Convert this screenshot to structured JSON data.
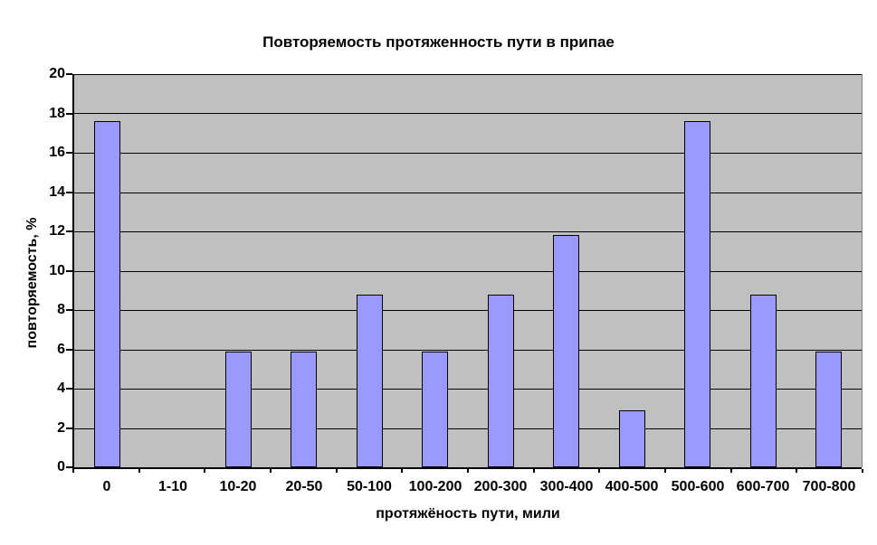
{
  "chart_data": {
    "type": "bar",
    "title": "Повторяемость протяженность пути в припае",
    "xlabel": "протяжёность пути, мили",
    "ylabel": "повторяемость, %",
    "categories": [
      "0",
      "1-10",
      "10-20",
      "20-50",
      "50-100",
      "100-200",
      "200-300",
      "300-400",
      "400-500",
      "500-600",
      "600-700",
      "700-800"
    ],
    "values": [
      17.6,
      0,
      5.9,
      5.9,
      8.8,
      5.9,
      8.8,
      11.8,
      2.9,
      17.6,
      8.8,
      5.9
    ],
    "ylim": [
      0,
      20
    ],
    "yticks": [
      0,
      2,
      4,
      6,
      8,
      10,
      12,
      14,
      16,
      18,
      20
    ],
    "grid": true,
    "legend": false,
    "colors": {
      "bar_fill": "#9999FF",
      "bar_border": "#000000",
      "plot_background": "#C0C0C0",
      "gridline": "#000000",
      "axis": "#000000",
      "plot_border_right": "#808080",
      "chart_background": "#FFFFFF",
      "text": "#000000"
    }
  }
}
